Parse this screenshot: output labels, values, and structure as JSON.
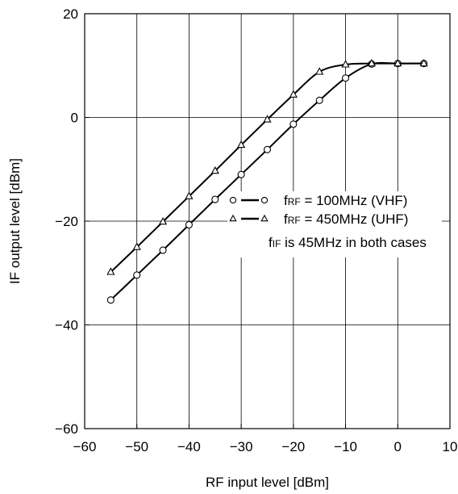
{
  "chart_data": {
    "type": "line",
    "xlabel": "RF input level [dBm]",
    "ylabel": "IF output level [dBm]",
    "xlim": [
      -60,
      10
    ],
    "ylim": [
      -60,
      20
    ],
    "xticks": [
      -60,
      -50,
      -40,
      -30,
      -20,
      -10,
      0,
      10
    ],
    "yticks": [
      -60,
      -40,
      -20,
      0,
      20
    ],
    "xtick_labels": [
      "−60",
      "−50",
      "−40",
      "−30",
      "−20",
      "−10",
      "0",
      "10"
    ],
    "ytick_labels": [
      "−60",
      "−40",
      "−20",
      "0",
      "20"
    ],
    "grid": true,
    "series": [
      {
        "marker": "circle",
        "points": [
          [
            -55,
            -35.2
          ],
          [
            -50,
            -30.4
          ],
          [
            -45,
            -25.6
          ],
          [
            -40,
            -20.7
          ],
          [
            -35,
            -15.8
          ],
          [
            -30,
            -11.0
          ],
          [
            -25,
            -6.2
          ],
          [
            -20,
            -1.3
          ],
          [
            -15,
            3.3
          ],
          [
            -10,
            7.6
          ],
          [
            -5,
            10.3
          ],
          [
            0,
            10.4
          ],
          [
            5,
            10.4
          ]
        ]
      },
      {
        "marker": "triangle",
        "points": [
          [
            -55,
            -29.8
          ],
          [
            -50,
            -25.0
          ],
          [
            -45,
            -20.1
          ],
          [
            -40,
            -15.2
          ],
          [
            -35,
            -10.3
          ],
          [
            -30,
            -5.3
          ],
          [
            -25,
            -0.4
          ],
          [
            -20,
            4.4
          ],
          [
            -15,
            8.8
          ],
          [
            -10,
            10.2
          ],
          [
            -5,
            10.4
          ],
          [
            0,
            10.4
          ],
          [
            5,
            10.4
          ]
        ]
      }
    ],
    "legend": {
      "placement": "center-right",
      "entries": [
        {
          "prefix": "f",
          "sub": "RF",
          "text": " = 100MHz (VHF)",
          "marker": "circle"
        },
        {
          "prefix": "f",
          "sub": "RF",
          "text": " = 450MHz (UHF)",
          "marker": "triangle"
        }
      ],
      "note": {
        "prefix": "f",
        "sub": "IF",
        "text": " is 45MHz in both cases"
      }
    }
  }
}
